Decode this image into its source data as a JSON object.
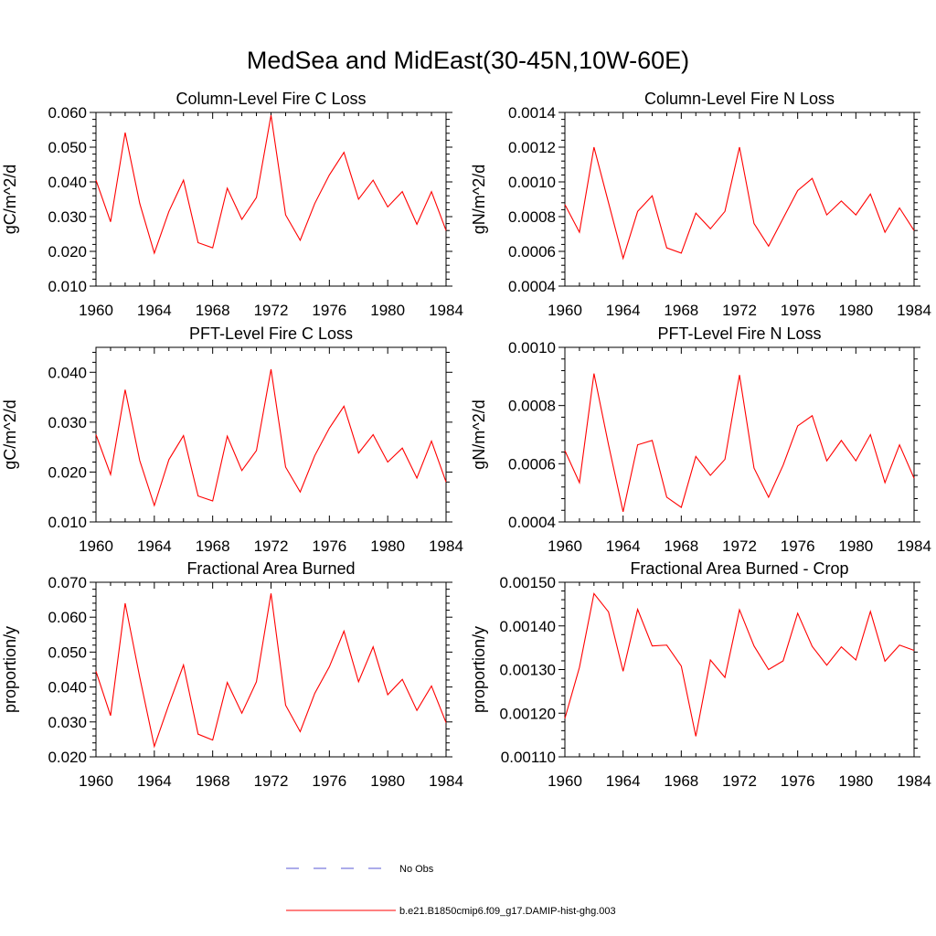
{
  "title": "MedSea and MidEast(30-45N,10W-60E)",
  "colors": {
    "model": "#ff0000",
    "obs": "#5a5ad6"
  },
  "x_ticks": [
    "1960",
    "1964",
    "1968",
    "1972",
    "1976",
    "1980",
    "1984"
  ],
  "legend": {
    "obs_label": "No Obs",
    "model_label": "b.e21.B1850cmip6.f09_g17.DAMIP-hist-ghg.003"
  },
  "chart_data": [
    {
      "type": "line",
      "title": "Column-Level Fire C Loss",
      "ylabel": "gC/m^2/d",
      "xlim": [
        1960,
        1984
      ],
      "ylim": [
        0.01,
        0.06
      ],
      "yticks": [
        "0.010",
        "0.020",
        "0.030",
        "0.040",
        "0.050",
        "0.060"
      ],
      "x": [
        1960,
        1961,
        1962,
        1963,
        1964,
        1965,
        1966,
        1967,
        1968,
        1969,
        1970,
        1971,
        1972,
        1973,
        1974,
        1975,
        1976,
        1977,
        1978,
        1979,
        1980,
        1981,
        1982,
        1983,
        1984
      ],
      "series": [
        {
          "name": "b.e21.B1850cmip6.f09_g17.DAMIP-hist-ghg.003",
          "values": [
            0.0405,
            0.0285,
            0.0542,
            0.0338,
            0.0195,
            0.0315,
            0.0405,
            0.0225,
            0.021,
            0.0382,
            0.0292,
            0.0355,
            0.0592,
            0.0305,
            0.0232,
            0.0338,
            0.042,
            0.0485,
            0.035,
            0.0405,
            0.0328,
            0.0372,
            0.0278,
            0.0372,
            0.026
          ]
        }
      ]
    },
    {
      "type": "line",
      "title": "Column-Level Fire N Loss",
      "ylabel": "gN/m^2/d",
      "xlim": [
        1960,
        1984
      ],
      "ylim": [
        0.0004,
        0.0014
      ],
      "yticks": [
        "0.0004",
        "0.0006",
        "0.0008",
        "0.0010",
        "0.0012",
        "0.0014"
      ],
      "x": [
        1960,
        1961,
        1962,
        1963,
        1964,
        1965,
        1966,
        1967,
        1968,
        1969,
        1970,
        1971,
        1972,
        1973,
        1974,
        1975,
        1976,
        1977,
        1978,
        1979,
        1980,
        1981,
        1982,
        1983,
        1984
      ],
      "series": [
        {
          "name": "b.e21.B1850cmip6.f09_g17.DAMIP-hist-ghg.003",
          "values": [
            0.00087,
            0.00071,
            0.0012,
            0.00088,
            0.00056,
            0.00083,
            0.00092,
            0.00062,
            0.00059,
            0.00082,
            0.00073,
            0.00083,
            0.0012,
            0.00076,
            0.00063,
            0.00079,
            0.00095,
            0.00102,
            0.00081,
            0.00089,
            0.00081,
            0.00093,
            0.00071,
            0.00085,
            0.00072
          ]
        }
      ]
    },
    {
      "type": "line",
      "title": "PFT-Level Fire C Loss",
      "ylabel": "gC/m^2/d",
      "xlim": [
        1960,
        1984
      ],
      "ylim": [
        0.01,
        0.045
      ],
      "yticks": [
        "0.010",
        "0.020",
        "0.030",
        "0.040"
      ],
      "x": [
        1960,
        1961,
        1962,
        1963,
        1964,
        1965,
        1966,
        1967,
        1968,
        1969,
        1970,
        1971,
        1972,
        1973,
        1974,
        1975,
        1976,
        1977,
        1978,
        1979,
        1980,
        1981,
        1982,
        1983,
        1984
      ],
      "series": [
        {
          "name": "b.e21.B1850cmip6.f09_g17.DAMIP-hist-ghg.003",
          "values": [
            0.0275,
            0.0195,
            0.0365,
            0.0223,
            0.0133,
            0.0225,
            0.0273,
            0.0152,
            0.0142,
            0.0272,
            0.0203,
            0.0243,
            0.0406,
            0.021,
            0.016,
            0.0233,
            0.0288,
            0.0332,
            0.0238,
            0.0275,
            0.022,
            0.0248,
            0.0188,
            0.0262,
            0.018
          ]
        }
      ]
    },
    {
      "type": "line",
      "title": "PFT-Level Fire N Loss",
      "ylabel": "gN/m^2/d",
      "xlim": [
        1960,
        1984
      ],
      "ylim": [
        0.0004,
        0.001
      ],
      "yticks": [
        "0.0004",
        "0.0006",
        "0.0008",
        "0.0010"
      ],
      "x": [
        1960,
        1961,
        1962,
        1963,
        1964,
        1965,
        1966,
        1967,
        1968,
        1969,
        1970,
        1971,
        1972,
        1973,
        1974,
        1975,
        1976,
        1977,
        1978,
        1979,
        1980,
        1981,
        1982,
        1983,
        1984
      ],
      "series": [
        {
          "name": "b.e21.B1850cmip6.f09_g17.DAMIP-hist-ghg.003",
          "values": [
            0.000645,
            0.000535,
            0.00091,
            0.000665,
            0.000435,
            0.000665,
            0.00068,
            0.000485,
            0.00045,
            0.000625,
            0.00056,
            0.000615,
            0.000905,
            0.000585,
            0.000485,
            0.000595,
            0.00073,
            0.000765,
            0.00061,
            0.00068,
            0.00061,
            0.0007,
            0.000535,
            0.000665,
            0.00055
          ]
        }
      ]
    },
    {
      "type": "line",
      "title": "Fractional Area Burned",
      "ylabel": "proportion/y",
      "xlim": [
        1960,
        1984
      ],
      "ylim": [
        0.02,
        0.07
      ],
      "yticks": [
        "0.020",
        "0.030",
        "0.040",
        "0.050",
        "0.060",
        "0.070"
      ],
      "x": [
        1960,
        1961,
        1962,
        1963,
        1964,
        1965,
        1966,
        1967,
        1968,
        1969,
        1970,
        1971,
        1972,
        1973,
        1974,
        1975,
        1976,
        1977,
        1978,
        1979,
        1980,
        1981,
        1982,
        1983,
        1984
      ],
      "series": [
        {
          "name": "b.e21.B1850cmip6.f09_g17.DAMIP-hist-ghg.003",
          "values": [
            0.0445,
            0.0318,
            0.064,
            0.0428,
            0.023,
            0.035,
            0.0463,
            0.0265,
            0.0248,
            0.0413,
            0.0325,
            0.0415,
            0.0668,
            0.0348,
            0.0272,
            0.0382,
            0.0458,
            0.056,
            0.0415,
            0.0515,
            0.0378,
            0.0422,
            0.0333,
            0.0403,
            0.0298
          ]
        }
      ]
    },
    {
      "type": "line",
      "title": "Fractional Area Burned - Crop",
      "ylabel": "proportion/y",
      "xlim": [
        1960,
        1984
      ],
      "ylim": [
        0.0011,
        0.0015
      ],
      "yticks": [
        "0.00110",
        "0.00120",
        "0.00130",
        "0.00140",
        "0.00150"
      ],
      "x": [
        1960,
        1961,
        1962,
        1963,
        1964,
        1965,
        1966,
        1967,
        1968,
        1969,
        1970,
        1971,
        1972,
        1973,
        1974,
        1975,
        1976,
        1977,
        1978,
        1979,
        1980,
        1981,
        1982,
        1983,
        1984
      ],
      "series": [
        {
          "name": "b.e21.B1850cmip6.f09_g17.DAMIP-hist-ghg.003",
          "values": [
            0.001188,
            0.001305,
            0.001474,
            0.001432,
            0.001296,
            0.001438,
            0.001354,
            0.001356,
            0.001308,
            0.001147,
            0.001322,
            0.001282,
            0.001437,
            0.001354,
            0.0013,
            0.00132,
            0.001429,
            0.001353,
            0.00131,
            0.001352,
            0.001322,
            0.001433,
            0.001319,
            0.001356,
            0.001344
          ]
        }
      ]
    }
  ]
}
